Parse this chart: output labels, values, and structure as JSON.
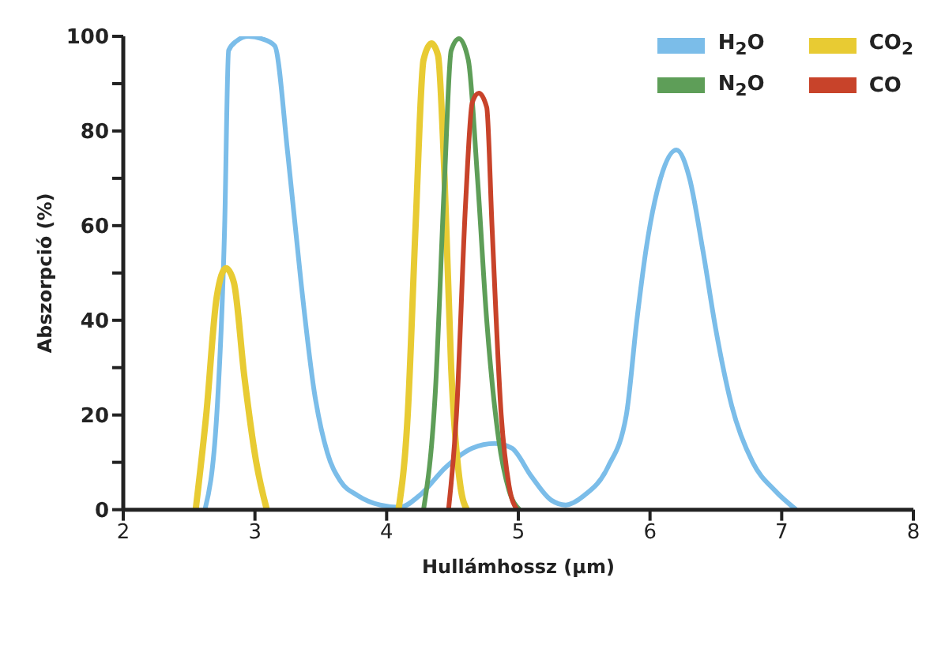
{
  "chart_data": {
    "type": "line",
    "xlabel": "Hullámhossz (µm)",
    "ylabel": "Abszorpció (%)",
    "xlim": [
      2,
      8
    ],
    "xticks": [
      2,
      3,
      4,
      5,
      6,
      7,
      8
    ],
    "ylim": [
      0,
      100
    ],
    "yticks": [
      0,
      {
        "value": 10,
        "label": null
      },
      20,
      {
        "value": 30,
        "label": null
      },
      40,
      {
        "value": 50,
        "label": null
      },
      60,
      {
        "value": 70,
        "label": null
      },
      80,
      {
        "value": 90,
        "label": null
      },
      100
    ],
    "grid": false,
    "legend": "top right",
    "marker": "none",
    "line_style": "solid",
    "series": [
      {
        "name": "H$_{2}$O",
        "color": "#7bbde9",
        "x": [
          2.62,
          2.71,
          2.77,
          2.8,
          2.86,
          2.95,
          3.05,
          3.15,
          3.25,
          3.35,
          3.45,
          3.55,
          3.65,
          3.78,
          3.95,
          4.1,
          4.25,
          4.45,
          4.65,
          4.82,
          4.95,
          5.1,
          5.25,
          5.36,
          5.5,
          5.68,
          5.82,
          5.9,
          5.97,
          6.08,
          6.2,
          6.3,
          6.4,
          6.5,
          6.62,
          6.78,
          6.95,
          7.11
        ],
        "values": [
          0,
          20,
          60,
          97,
          99,
          100,
          99.5,
          98,
          75,
          48,
          25,
          12,
          6,
          3,
          1,
          0.5,
          3,
          9,
          13,
          14,
          13,
          7,
          2,
          1,
          3,
          9,
          20,
          40,
          55,
          70,
          76,
          70,
          55,
          38,
          22,
          10,
          4,
          0
        ]
      },
      {
        "name": "CO$_{2}$",
        "color": "#e8cb33",
        "x": [
          2.55,
          2.63,
          2.71,
          2.78,
          2.84,
          2.92,
          3.01,
          3.09,
          3.6,
          4.09,
          4.16,
          4.22,
          4.28,
          4.34,
          4.39,
          4.44,
          4.49,
          4.56,
          4.61
        ],
        "values": [
          0,
          20,
          45,
          51,
          48,
          28,
          10,
          0,
          null,
          0,
          20,
          60,
          95,
          98.5,
          96,
          70,
          30,
          5,
          0
        ]
      },
      {
        "name": "N$_{2}$O",
        "color": "#5e9e58",
        "x": [
          4.28,
          4.37,
          4.44,
          4.49,
          4.55,
          4.62,
          4.69,
          4.76,
          4.85,
          4.93,
          5.01
        ],
        "values": [
          0,
          25,
          70,
          97,
          99.5,
          95,
          70,
          40,
          15,
          4,
          0
        ]
      },
      {
        "name": "CO",
        "color": "#c8432a",
        "x": [
          4.47,
          4.53,
          4.6,
          4.65,
          4.7,
          4.76,
          4.8,
          4.87,
          4.93,
          4.99
        ],
        "values": [
          0,
          20,
          65,
          86,
          88,
          85,
          60,
          20,
          5,
          0
        ]
      }
    ]
  }
}
